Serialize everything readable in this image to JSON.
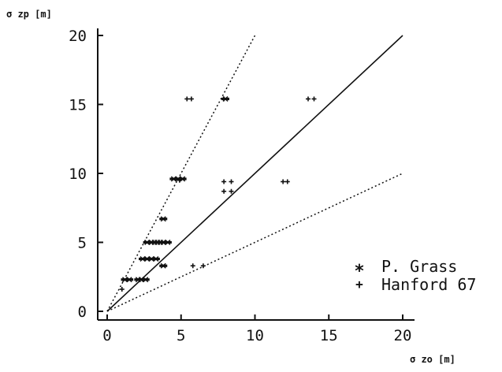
{
  "chart_data": {
    "type": "scatter",
    "title": "",
    "xlabel": "σ zo [m]",
    "ylabel": "σ zp [m]",
    "xlim": [
      0,
      20
    ],
    "ylim": [
      0,
      20
    ],
    "x_ticks": [
      "0",
      "5",
      "10",
      "15",
      "20"
    ],
    "y_ticks": [
      "0",
      "5",
      "10",
      "15",
      "20"
    ],
    "grid": false,
    "legend_position": "bottom-right",
    "colors": {
      "ink": "#111111",
      "background": "#ffffff"
    },
    "series": [
      {
        "name": "P. Grass",
        "marker": "asterisk",
        "points": [
          [
            1.2,
            2.3
          ],
          [
            1.5,
            2.3
          ],
          [
            2.1,
            2.3
          ],
          [
            2.3,
            2.3
          ],
          [
            2.6,
            2.3
          ],
          [
            2.4,
            3.8
          ],
          [
            2.7,
            3.8
          ],
          [
            3.0,
            3.8
          ],
          [
            3.3,
            3.8
          ],
          [
            2.7,
            5.0
          ],
          [
            3.0,
            5.0
          ],
          [
            3.2,
            5.0
          ],
          [
            3.4,
            5.0
          ],
          [
            3.6,
            5.0
          ],
          [
            3.8,
            5.0
          ],
          [
            4.1,
            5.0
          ],
          [
            3.8,
            6.7
          ],
          [
            3.8,
            3.3
          ],
          [
            4.5,
            9.6
          ],
          [
            4.8,
            9.6
          ],
          [
            5.1,
            9.6
          ],
          [
            8.0,
            15.4
          ]
        ]
      },
      {
        "name": "Hanford 67",
        "marker": "plus",
        "points": [
          [
            1.0,
            1.6
          ],
          [
            4.9,
            9.5
          ],
          [
            5.4,
            15.4
          ],
          [
            5.7,
            15.4
          ],
          [
            7.9,
            15.4
          ],
          [
            7.9,
            9.4
          ],
          [
            8.4,
            9.4
          ],
          [
            7.9,
            8.7
          ],
          [
            8.4,
            8.7
          ],
          [
            11.9,
            9.4
          ],
          [
            12.2,
            9.4
          ],
          [
            13.6,
            15.4
          ],
          [
            14.0,
            15.4
          ],
          [
            5.8,
            3.3
          ],
          [
            6.5,
            3.3
          ]
        ]
      }
    ],
    "reference_lines": [
      {
        "slope": 2.0,
        "style": "dotted",
        "from": [
          0,
          0
        ],
        "to": [
          10,
          20
        ]
      },
      {
        "slope": 1.0,
        "style": "solid",
        "from": [
          0,
          0
        ],
        "to": [
          20,
          20
        ]
      },
      {
        "slope": 0.5,
        "style": "dotted",
        "from": [
          0,
          0
        ],
        "to": [
          20,
          10
        ]
      }
    ]
  }
}
